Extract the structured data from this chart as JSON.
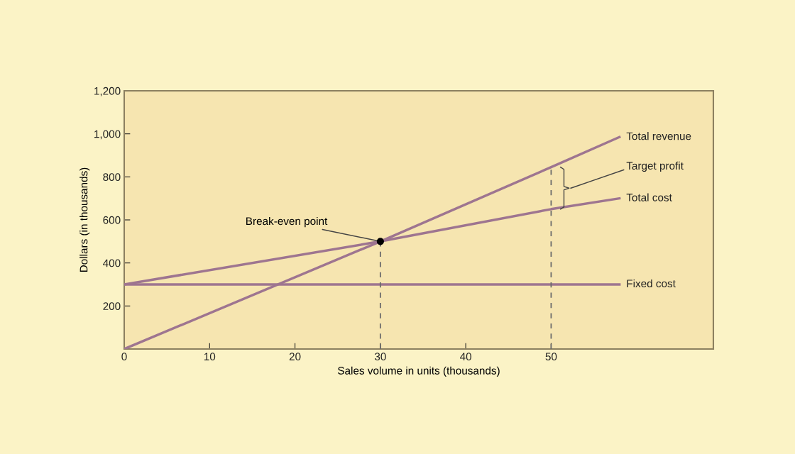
{
  "chart_data": {
    "type": "line",
    "xlabel": "Sales volume in units (thousands)",
    "ylabel": "Dollars (in thousands)",
    "xlim": [
      0,
      69
    ],
    "xticks": [
      0,
      10,
      20,
      30,
      40,
      50
    ],
    "ylim": [
      0,
      1200
    ],
    "yticks": [
      {
        "value": 200,
        "label": "200"
      },
      {
        "value": 400,
        "label": "400"
      },
      {
        "value": 600,
        "label": "600"
      },
      {
        "value": 800,
        "label": "800"
      },
      {
        "value": 1000,
        "label": "1,000"
      },
      {
        "value": 1200,
        "label": "1,200"
      }
    ],
    "grid": false,
    "legend": false,
    "marker": "none",
    "line_style": "solid",
    "series": [
      {
        "name": "Total revenue",
        "color": "#9e7590",
        "x": [
          0,
          30,
          50,
          58
        ],
        "values": [
          0,
          500,
          845,
          985
        ]
      },
      {
        "name": "Total cost",
        "color": "#9e7590",
        "x": [
          0,
          30,
          50,
          58
        ],
        "values": [
          300,
          500,
          650,
          700
        ]
      },
      {
        "name": "Fixed cost",
        "color": "#9e7590",
        "x": [
          0,
          58
        ],
        "values": [
          300,
          300
        ]
      },
      {
        "color": "#6b6b6b",
        "x": [
          30,
          30
        ],
        "values": [
          0,
          500
        ],
        "line_style": "dashed"
      },
      {
        "color": "#6b6b6b",
        "x": [
          50,
          50
        ],
        "values": [
          0,
          845
        ],
        "line_style": "dashed"
      },
      {
        "type": "scatter",
        "color": "#000000",
        "x": [
          30
        ],
        "values": [
          500
        ],
        "marker": "circle"
      }
    ],
    "annotations": [
      {
        "text": "Break-even point",
        "x": 30,
        "y": 500
      },
      "Target profit"
    ]
  }
}
